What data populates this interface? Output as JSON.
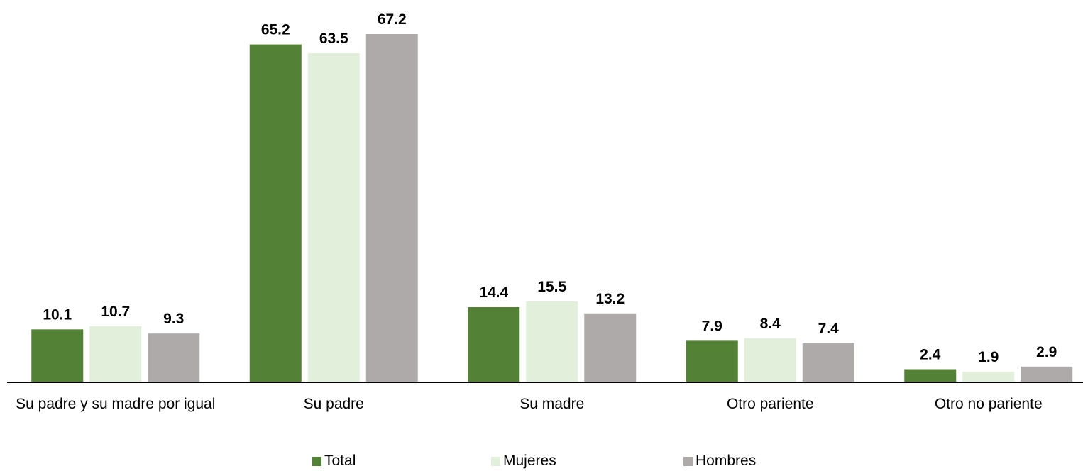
{
  "chart_data": {
    "type": "bar",
    "categories": [
      "Su padre y su madre por igual",
      "Su padre",
      "Su madre",
      "Otro pariente",
      "Otro no pariente"
    ],
    "series": [
      {
        "name": "Total",
        "color": "#538135",
        "values": [
          10.1,
          65.2,
          14.4,
          7.9,
          2.4
        ]
      },
      {
        "name": "Mujeres",
        "color": "#e2efda",
        "values": [
          10.7,
          63.5,
          15.5,
          8.4,
          1.9
        ]
      },
      {
        "name": "Hombres",
        "color": "#aeaaaa",
        "values": [
          9.3,
          67.2,
          13.2,
          7.4,
          2.9
        ]
      }
    ],
    "legend": "bottom"
  }
}
